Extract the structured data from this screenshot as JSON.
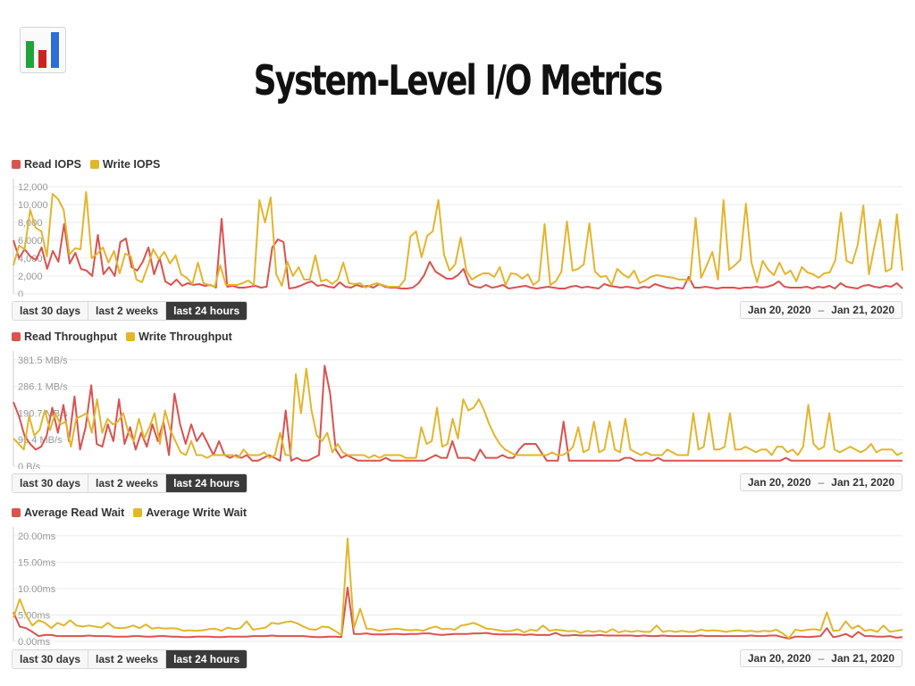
{
  "title": "System-Level I/O Metrics",
  "colors": {
    "read": "#d9534f",
    "write": "#e3b52e",
    "logo_blue": "#2b6fd6",
    "logo_green": "#22a33a",
    "logo_red": "#cc2222"
  },
  "buttons": {
    "b30": "last 30 days",
    "b2w": "last 2 weeks",
    "b24": "last 24 hours"
  },
  "date_range": {
    "from": "Jan 20, 2020",
    "to": "Jan 21, 2020",
    "separator": "–"
  },
  "chart_data": [
    {
      "type": "line",
      "title": "",
      "legend": [
        "Read IOPS",
        "Write IOPS"
      ],
      "ylim": [
        0,
        12500
      ],
      "ytick_values": [
        0,
        2000,
        4000,
        6000,
        8000,
        10000,
        12000
      ],
      "ytick_labels": [
        "0",
        "2,000",
        "4,000",
        "6,000",
        "8,000",
        "10,000",
        "12,000"
      ],
      "series": [
        {
          "name": "Read IOPS",
          "values": [
            6000,
            4000,
            5000,
            4200,
            3800,
            5200,
            2800,
            4800,
            3600,
            7800,
            3400,
            4600,
            2800,
            2600,
            2000,
            6600,
            2200,
            3000,
            2000,
            5800,
            6200,
            3000,
            2600,
            3600,
            5200,
            2200,
            4000,
            1400,
            1000,
            1600,
            900,
            1200,
            1000,
            1100,
            900,
            1000,
            700,
            8400,
            800,
            900,
            700,
            700,
            800,
            900,
            700,
            800,
            5200,
            6100,
            5800,
            600,
            700,
            900,
            1200,
            1400,
            900,
            1000,
            800,
            700,
            1300,
            800,
            700,
            1000,
            800,
            900,
            700,
            1100,
            800,
            700,
            700,
            600,
            600,
            700,
            1200,
            2100,
            3600,
            2500,
            2100,
            1700,
            1700,
            2100,
            2800,
            1100,
            800,
            700,
            1000,
            700,
            800,
            1000,
            600,
            700,
            800,
            900,
            700,
            600,
            700,
            800,
            700,
            600,
            600,
            800,
            900,
            700,
            800,
            700,
            600,
            1100,
            900,
            800,
            700,
            800,
            700,
            600,
            800,
            700,
            1100,
            900,
            700,
            600,
            700,
            600,
            1900,
            700,
            700,
            800,
            700,
            600,
            700,
            700,
            700,
            600,
            700,
            700,
            800,
            700,
            800,
            1000,
            1400,
            800,
            700,
            700,
            700,
            800,
            600,
            800,
            700,
            900,
            600,
            1200,
            800,
            700,
            600,
            900,
            1000,
            800,
            700,
            900,
            800,
            1200,
            600
          ]
        },
        {
          "name": "Write IOPS",
          "values": [
            3200,
            5400,
            5000,
            9400,
            7400,
            7000,
            4200,
            11200,
            10600,
            9400,
            4400,
            5100,
            5000,
            11400,
            4000,
            4500,
            5200,
            3500,
            4800,
            2300,
            4500,
            4200,
            1600,
            1300,
            3000,
            5000,
            3900,
            4700,
            3400,
            4300,
            2200,
            1800,
            1100,
            3500,
            1200,
            1000,
            800,
            3200,
            1000,
            1000,
            1000,
            1200,
            1500,
            1000,
            10500,
            8000,
            10800,
            2200,
            900,
            3600,
            2000,
            3000,
            1600,
            1600,
            4300,
            1400,
            1600,
            1100,
            1600,
            3500,
            1200,
            1100,
            1200,
            700,
            1000,
            1200,
            1000,
            800,
            800,
            800,
            1600,
            6400,
            7000,
            4100,
            6500,
            7000,
            10500,
            4400,
            2600,
            3300,
            6300,
            2600,
            1600,
            2000,
            2300,
            2300,
            1900,
            3000,
            1000,
            2300,
            2200,
            1700,
            2200,
            1000,
            1500,
            7800,
            1000,
            1400,
            2500,
            8100,
            2600,
            2800,
            3300,
            7900,
            2500,
            1900,
            2000,
            1000,
            2800,
            2200,
            1800,
            2600,
            1200,
            1500,
            1900,
            2100,
            2000,
            1900,
            1800,
            1600,
            1600,
            1500,
            8500,
            1800,
            3200,
            4700,
            1600,
            10500,
            2700,
            3200,
            3800,
            10100,
            3500,
            1300,
            3700,
            2700,
            2100,
            3500,
            2200,
            2600,
            1400,
            3000,
            2400,
            2200,
            1800,
            2300,
            2400,
            3800,
            9100,
            3700,
            3400,
            5500,
            9900,
            2200,
            5400,
            8300,
            2500,
            2800,
            8900,
            2600
          ]
        }
      ]
    },
    {
      "type": "line",
      "title": "",
      "legend": [
        "Read Throughput",
        "Write Throughput"
      ],
      "ylim": [
        0,
        400
      ],
      "ytick_values": [
        0,
        95.4,
        190.7,
        286.1,
        381.5
      ],
      "ytick_labels": [
        "0 B/s",
        "95.4 MB/s",
        "190.7 MB/s",
        "286.1 MB/s",
        "381.5 MB/s"
      ],
      "series": [
        {
          "name": "Read Throughput",
          "values": [
            230,
            180,
            110,
            80,
            60,
            70,
            110,
            210,
            120,
            220,
            90,
            250,
            60,
            140,
            290,
            80,
            70,
            150,
            90,
            240,
            80,
            140,
            60,
            120,
            70,
            150,
            90,
            160,
            40,
            260,
            150,
            80,
            150,
            90,
            120,
            80,
            40,
            90,
            40,
            30,
            40,
            30,
            40,
            20,
            20,
            30,
            40,
            30,
            20,
            200,
            20,
            30,
            20,
            20,
            30,
            40,
            360,
            260,
            60,
            30,
            40,
            30,
            20,
            20,
            20,
            20,
            20,
            30,
            20,
            20,
            20,
            20,
            20,
            20,
            20,
            30,
            40,
            30,
            30,
            90,
            30,
            30,
            30,
            20,
            60,
            30,
            30,
            30,
            40,
            30,
            30,
            60,
            80,
            80,
            80,
            50,
            20,
            20,
            20,
            160,
            20,
            20,
            20,
            20,
            20,
            20,
            20,
            20,
            20,
            20,
            30,
            30,
            20,
            20,
            20,
            20,
            30,
            20,
            20,
            20,
            20,
            20,
            20,
            20,
            20,
            20,
            20,
            20,
            20,
            20,
            20,
            20,
            20,
            20,
            20,
            20,
            20,
            20,
            20,
            30,
            20,
            20,
            20,
            20,
            20,
            20,
            20,
            20,
            20,
            20,
            20,
            20,
            20,
            20,
            20,
            20,
            20,
            20,
            20,
            20,
            20
          ]
        },
        {
          "name": "Write Throughput",
          "values": [
            100,
            80,
            60,
            180,
            110,
            130,
            200,
            130,
            190,
            150,
            160,
            70,
            170,
            180,
            190,
            120,
            240,
            120,
            170,
            150,
            160,
            190,
            120,
            90,
            170,
            100,
            140,
            190,
            80,
            200,
            130,
            90,
            50,
            40,
            90,
            40,
            40,
            30,
            40,
            40,
            40,
            40,
            40,
            30,
            60,
            40,
            40,
            40,
            50,
            30,
            40,
            120,
            40,
            40,
            330,
            190,
            350,
            200,
            110,
            90,
            120,
            50,
            80,
            50,
            40,
            40,
            40,
            40,
            30,
            40,
            30,
            40,
            40,
            40,
            40,
            30,
            30,
            30,
            140,
            80,
            90,
            210,
            70,
            80,
            170,
            100,
            240,
            200,
            210,
            240,
            200,
            150,
            110,
            80,
            60,
            50,
            40,
            40,
            40,
            40,
            40,
            40,
            40,
            50,
            40,
            40,
            50,
            70,
            140,
            50,
            60,
            160,
            50,
            60,
            160,
            60,
            50,
            170,
            60,
            50,
            40,
            50,
            40,
            40,
            40,
            60,
            50,
            40,
            40,
            40,
            190,
            60,
            70,
            190,
            60,
            60,
            70,
            190,
            60,
            60,
            70,
            60,
            50,
            60,
            60,
            40,
            70,
            70,
            50,
            60,
            40,
            70,
            220,
            80,
            60,
            70,
            190,
            60,
            50,
            60,
            70,
            60,
            50,
            60,
            80,
            50,
            60,
            60,
            60,
            40,
            50
          ]
        }
      ]
    },
    {
      "type": "line",
      "title": "",
      "legend": [
        "Average Read Wait",
        "Average Write Wait"
      ],
      "ylim": [
        0,
        21
      ],
      "ytick_values": [
        0,
        5,
        10,
        15,
        20
      ],
      "ytick_labels": [
        "0.00ms",
        "5.00ms",
        "10.00ms",
        "15.00ms",
        "20.00ms"
      ],
      "series": [
        {
          "name": "Average Read Wait",
          "values": [
            5.5,
            2.8,
            2.5,
            1.8,
            1.0,
            1.2,
            1.2,
            1.0,
            1.0,
            1.0,
            1.0,
            1.0,
            1.1,
            1.0,
            1.0,
            1.0,
            0.9,
            0.9,
            0.9,
            1.0,
            1.0,
            0.9,
            0.9,
            1.0,
            1.0,
            0.9,
            0.9,
            0.8,
            0.8,
            0.9,
            0.9,
            0.9,
            0.8,
            0.8,
            0.9,
            0.9,
            0.9,
            0.9,
            1.0,
            1.0,
            1.0,
            1.1,
            1.0,
            1.0,
            1.0,
            1.0,
            1.0,
            0.9,
            0.8,
            0.8,
            0.9,
            0.9,
            0.8,
            10.2,
            1.4,
            1.4,
            1.5,
            1.3,
            1.3,
            1.3,
            1.4,
            1.4,
            1.3,
            1.4,
            1.4,
            1.5,
            1.5,
            1.3,
            1.2,
            1.3,
            1.4,
            1.4,
            1.4,
            1.5,
            1.5,
            1.6,
            1.4,
            1.3,
            1.3,
            1.3,
            1.3,
            1.2,
            1.3,
            1.2,
            1.2,
            1.2,
            1.6,
            1.1,
            1.1,
            1.2,
            1.1,
            1.1,
            1.1,
            1.2,
            1.1,
            1.1,
            1.1,
            1.1,
            1.1,
            1.0,
            1.1,
            1.0,
            1.0,
            1.1,
            1.0,
            1.0,
            1.0,
            1.0,
            1.0,
            1.1,
            1.0,
            1.0,
            1.0,
            1.0,
            1.0,
            1.0,
            1.0,
            1.1,
            1.0,
            1.0,
            1.1,
            1.1,
            0.8,
            0.5,
            0.9,
            0.9,
            0.8,
            0.9,
            1.0,
            2.5,
            0.8,
            1.0,
            1.4,
            0.8,
            1.8,
            1.0,
            1.0,
            0.9,
            0.9,
            1.0,
            0.7,
            0.8
          ]
        },
        {
          "name": "Average Write Wait",
          "values": [
            4.5,
            8.0,
            5.0,
            3.0,
            4.0,
            3.5,
            2.5,
            3.5,
            3.0,
            4.0,
            3.0,
            2.8,
            3.0,
            2.8,
            2.6,
            3.5,
            2.6,
            2.5,
            2.6,
            3.0,
            2.5,
            3.2,
            2.4,
            2.6,
            2.4,
            2.5,
            2.4,
            2.0,
            2.1,
            2.0,
            2.1,
            2.3,
            2.4,
            2.0,
            2.6,
            2.3,
            2.5,
            3.8,
            2.2,
            2.4,
            2.6,
            3.5,
            3.3,
            3.6,
            3.8,
            3.4,
            2.8,
            2.3,
            2.2,
            2.8,
            2.7,
            2.0,
            1.2,
            19.5,
            2.5,
            6.2,
            2.4,
            2.3,
            2.0,
            2.2,
            2.3,
            2.4,
            2.2,
            2.1,
            2.2,
            2.0,
            2.5,
            2.8,
            2.3,
            2.4,
            2.2,
            3.0,
            3.2,
            3.5,
            3.0,
            2.4,
            2.3,
            2.1,
            1.9,
            2.0,
            2.3,
            1.7,
            2.2,
            2.0,
            3.0,
            2.0,
            2.2,
            2.1,
            1.9,
            2.0,
            1.6,
            2.0,
            1.8,
            2.0,
            1.7,
            2.3,
            1.7,
            2.0,
            1.8,
            2.0,
            1.8,
            1.8,
            3.0,
            1.8,
            2.0,
            1.8,
            2.0,
            1.8,
            1.8,
            2.2,
            2.0,
            2.1,
            2.0,
            1.8,
            2.0,
            2.1,
            1.9,
            2.0,
            1.8,
            2.0,
            1.9,
            2.2,
            1.5,
            0.6,
            2.2,
            2.0,
            2.2,
            2.3,
            2.1,
            5.5,
            2.0,
            2.1,
            3.8,
            2.4,
            3.0,
            2.0,
            2.2,
            1.8,
            3.0,
            1.8,
            2.0,
            2.2
          ]
        }
      ]
    }
  ]
}
